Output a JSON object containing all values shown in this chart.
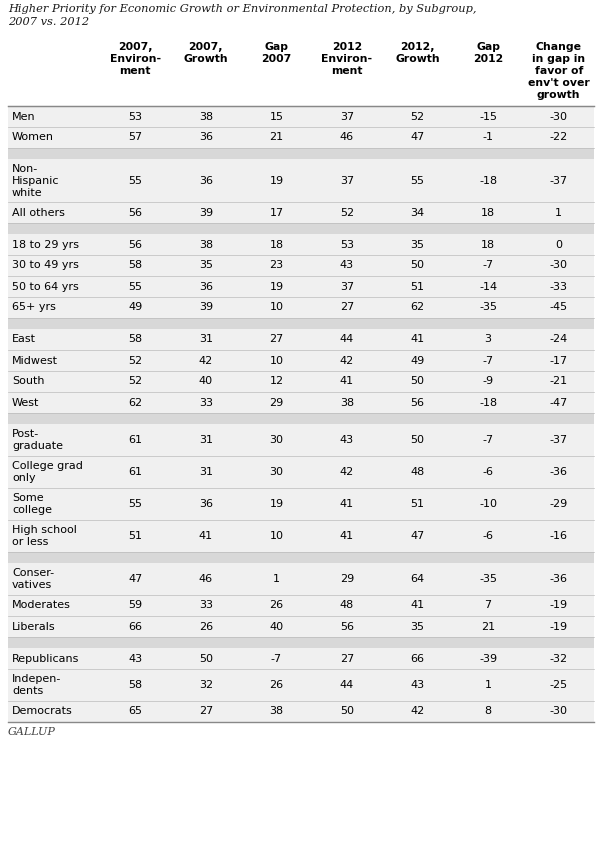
{
  "title_line1": "Higher Priority for Economic Growth or Environmental Protection, by Subgroup,",
  "title_line2": "2007 vs. 2012",
  "col_headers": [
    "2007,\nEnviron-\nment",
    "2007,\nGrowth",
    "Gap\n2007",
    "2012\nEnviron-\nment",
    "2012,\nGrowth",
    "Gap\n2012",
    "Change\nin gap in\nfavor of\nenv't over\ngrowth"
  ],
  "rows": [
    {
      "label": "Men",
      "values": [
        53,
        38,
        15,
        37,
        52,
        -15,
        -30
      ]
    },
    {
      "label": "Women",
      "values": [
        57,
        36,
        21,
        46,
        47,
        -1,
        -22
      ]
    },
    {
      "label": null,
      "values": null
    },
    {
      "label": "Non-\nHispanic\nwhite",
      "values": [
        55,
        36,
        19,
        37,
        55,
        -18,
        -37
      ]
    },
    {
      "label": "All others",
      "values": [
        56,
        39,
        17,
        52,
        34,
        18,
        1
      ]
    },
    {
      "label": null,
      "values": null
    },
    {
      "label": "18 to 29 yrs",
      "values": [
        56,
        38,
        18,
        53,
        35,
        18,
        0
      ]
    },
    {
      "label": "30 to 49 yrs",
      "values": [
        58,
        35,
        23,
        43,
        50,
        -7,
        -30
      ]
    },
    {
      "label": "50 to 64 yrs",
      "values": [
        55,
        36,
        19,
        37,
        51,
        -14,
        -33
      ]
    },
    {
      "label": "65+ yrs",
      "values": [
        49,
        39,
        10,
        27,
        62,
        -35,
        -45
      ]
    },
    {
      "label": null,
      "values": null
    },
    {
      "label": "East",
      "values": [
        58,
        31,
        27,
        44,
        41,
        3,
        -24
      ]
    },
    {
      "label": "Midwest",
      "values": [
        52,
        42,
        10,
        42,
        49,
        -7,
        -17
      ]
    },
    {
      "label": "South",
      "values": [
        52,
        40,
        12,
        41,
        50,
        -9,
        -21
      ]
    },
    {
      "label": "West",
      "values": [
        62,
        33,
        29,
        38,
        56,
        -18,
        -47
      ]
    },
    {
      "label": null,
      "values": null
    },
    {
      "label": "Post-\ngraduate",
      "values": [
        61,
        31,
        30,
        43,
        50,
        -7,
        -37
      ]
    },
    {
      "label": "College grad\nonly",
      "values": [
        61,
        31,
        30,
        42,
        48,
        -6,
        -36
      ]
    },
    {
      "label": "Some\ncollege",
      "values": [
        55,
        36,
        19,
        41,
        51,
        -10,
        -29
      ]
    },
    {
      "label": "High school\nor less",
      "values": [
        51,
        41,
        10,
        41,
        47,
        -6,
        -16
      ]
    },
    {
      "label": null,
      "values": null
    },
    {
      "label": "Conser-\nvatives",
      "values": [
        47,
        46,
        1,
        29,
        64,
        -35,
        -36
      ]
    },
    {
      "label": "Moderates",
      "values": [
        59,
        33,
        26,
        48,
        41,
        7,
        -19
      ]
    },
    {
      "label": "Liberals",
      "values": [
        66,
        26,
        40,
        56,
        35,
        21,
        -19
      ]
    },
    {
      "label": null,
      "values": null
    },
    {
      "label": "Republicans",
      "values": [
        43,
        50,
        -7,
        27,
        66,
        -39,
        -32
      ]
    },
    {
      "label": "Indepen-\ndents",
      "values": [
        58,
        32,
        26,
        44,
        43,
        1,
        -25
      ]
    },
    {
      "label": "Democrats",
      "values": [
        65,
        27,
        38,
        50,
        42,
        8,
        -30
      ]
    }
  ],
  "row_bg": "#f0f0f0",
  "sep_bg": "#d8d8d8",
  "line_color": "#bbbbbb",
  "footer_text": "GALLUP"
}
